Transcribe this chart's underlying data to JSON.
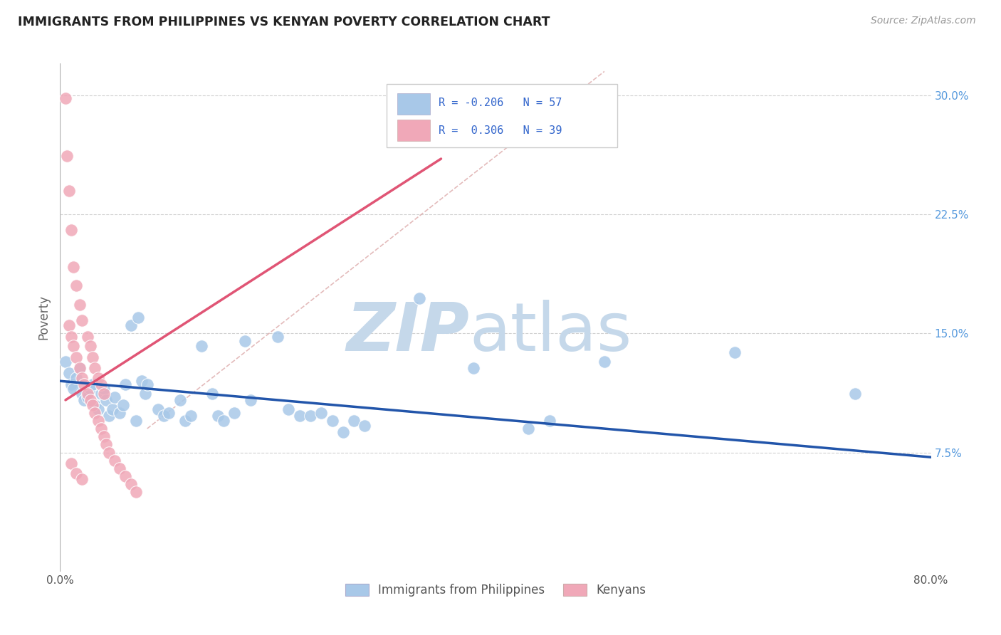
{
  "title": "IMMIGRANTS FROM PHILIPPINES VS KENYAN POVERTY CORRELATION CHART",
  "source": "Source: ZipAtlas.com",
  "ylabel": "Poverty",
  "xlim": [
    0.0,
    0.8
  ],
  "ylim": [
    0.0,
    0.32
  ],
  "legend_r_blue": "-0.206",
  "legend_n_blue": "57",
  "legend_r_pink": "0.306",
  "legend_n_pink": "39",
  "blue_scatter": [
    [
      0.005,
      0.132
    ],
    [
      0.008,
      0.125
    ],
    [
      0.01,
      0.118
    ],
    [
      0.012,
      0.115
    ],
    [
      0.015,
      0.122
    ],
    [
      0.018,
      0.128
    ],
    [
      0.02,
      0.112
    ],
    [
      0.022,
      0.108
    ],
    [
      0.025,
      0.11
    ],
    [
      0.028,
      0.115
    ],
    [
      0.03,
      0.118
    ],
    [
      0.032,
      0.105
    ],
    [
      0.035,
      0.102
    ],
    [
      0.038,
      0.112
    ],
    [
      0.04,
      0.115
    ],
    [
      0.042,
      0.108
    ],
    [
      0.045,
      0.098
    ],
    [
      0.048,
      0.102
    ],
    [
      0.05,
      0.11
    ],
    [
      0.055,
      0.1
    ],
    [
      0.058,
      0.105
    ],
    [
      0.06,
      0.118
    ],
    [
      0.065,
      0.155
    ],
    [
      0.07,
      0.095
    ],
    [
      0.072,
      0.16
    ],
    [
      0.075,
      0.12
    ],
    [
      0.078,
      0.112
    ],
    [
      0.08,
      0.118
    ],
    [
      0.09,
      0.102
    ],
    [
      0.095,
      0.098
    ],
    [
      0.1,
      0.1
    ],
    [
      0.11,
      0.108
    ],
    [
      0.115,
      0.095
    ],
    [
      0.12,
      0.098
    ],
    [
      0.13,
      0.142
    ],
    [
      0.14,
      0.112
    ],
    [
      0.145,
      0.098
    ],
    [
      0.15,
      0.095
    ],
    [
      0.16,
      0.1
    ],
    [
      0.17,
      0.145
    ],
    [
      0.175,
      0.108
    ],
    [
      0.2,
      0.148
    ],
    [
      0.21,
      0.102
    ],
    [
      0.22,
      0.098
    ],
    [
      0.23,
      0.098
    ],
    [
      0.24,
      0.1
    ],
    [
      0.25,
      0.095
    ],
    [
      0.26,
      0.088
    ],
    [
      0.27,
      0.095
    ],
    [
      0.28,
      0.092
    ],
    [
      0.33,
      0.172
    ],
    [
      0.38,
      0.128
    ],
    [
      0.43,
      0.09
    ],
    [
      0.45,
      0.095
    ],
    [
      0.5,
      0.132
    ],
    [
      0.62,
      0.138
    ],
    [
      0.73,
      0.112
    ]
  ],
  "pink_scatter": [
    [
      0.005,
      0.298
    ],
    [
      0.006,
      0.262
    ],
    [
      0.008,
      0.24
    ],
    [
      0.01,
      0.215
    ],
    [
      0.012,
      0.192
    ],
    [
      0.015,
      0.18
    ],
    [
      0.018,
      0.168
    ],
    [
      0.02,
      0.158
    ],
    [
      0.025,
      0.148
    ],
    [
      0.028,
      0.142
    ],
    [
      0.03,
      0.135
    ],
    [
      0.032,
      0.128
    ],
    [
      0.035,
      0.122
    ],
    [
      0.038,
      0.118
    ],
    [
      0.04,
      0.112
    ],
    [
      0.008,
      0.155
    ],
    [
      0.01,
      0.148
    ],
    [
      0.012,
      0.142
    ],
    [
      0.015,
      0.135
    ],
    [
      0.018,
      0.128
    ],
    [
      0.02,
      0.122
    ],
    [
      0.022,
      0.118
    ],
    [
      0.025,
      0.112
    ],
    [
      0.028,
      0.108
    ],
    [
      0.03,
      0.105
    ],
    [
      0.032,
      0.1
    ],
    [
      0.035,
      0.095
    ],
    [
      0.038,
      0.09
    ],
    [
      0.04,
      0.085
    ],
    [
      0.042,
      0.08
    ],
    [
      0.045,
      0.075
    ],
    [
      0.05,
      0.07
    ],
    [
      0.055,
      0.065
    ],
    [
      0.06,
      0.06
    ],
    [
      0.065,
      0.055
    ],
    [
      0.07,
      0.05
    ],
    [
      0.01,
      0.068
    ],
    [
      0.015,
      0.062
    ],
    [
      0.02,
      0.058
    ]
  ],
  "blue_color": "#a8c8e8",
  "pink_color": "#f0a8b8",
  "blue_line_color": "#2255aa",
  "pink_line_color": "#e05575",
  "diagonal_color": "#ddaaaa",
  "watermark_zip_color": "#c5d8ea",
  "watermark_atlas_color": "#c5d8ea",
  "background_color": "#ffffff",
  "grid_color": "#cccccc",
  "blue_line": [
    [
      0.0,
      0.12
    ],
    [
      0.8,
      0.072
    ]
  ],
  "pink_line": [
    [
      0.005,
      0.108
    ],
    [
      0.35,
      0.26
    ]
  ],
  "diag_line": [
    [
      0.08,
      0.09
    ],
    [
      0.5,
      0.315
    ]
  ]
}
